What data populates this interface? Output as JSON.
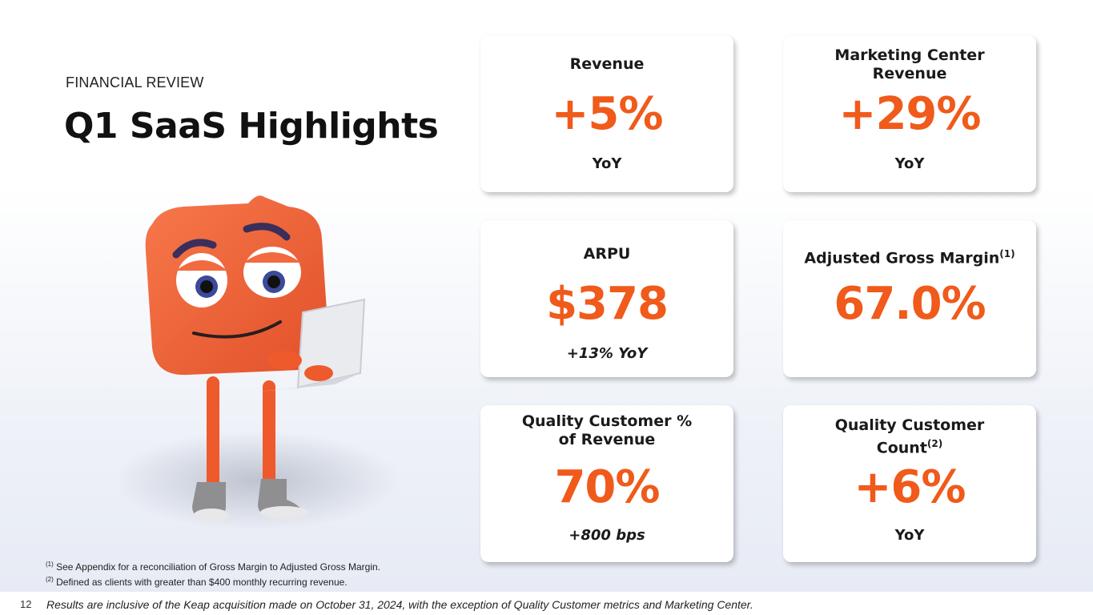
{
  "header": {
    "eyebrow": "FINANCIAL REVIEW",
    "title": "Q1 SaaS Highlights"
  },
  "cards": [
    {
      "title": "Revenue",
      "value": "+5%",
      "sub": "YoY"
    },
    {
      "title": "Marketing Center Revenue",
      "value": "+29%",
      "sub": "YoY"
    },
    {
      "title": "ARPU",
      "value": "$378",
      "sub": "+13% YoY"
    },
    {
      "title": "Adjusted Gross Margin",
      "title_sup": "(1)",
      "value": "67.0%"
    },
    {
      "title": "Quality Customer % of Revenue",
      "value": "70%",
      "sub": "+800 bps"
    },
    {
      "title": "Quality Customer Count",
      "title_sup": "(2)",
      "value": "+6%",
      "sub": "YoY"
    }
  ],
  "footnotes": [
    {
      "mark": "(1)",
      "text": "See Appendix for a reconciliation of Gross Margin to Adjusted Gross Margin."
    },
    {
      "mark": "(2)",
      "text": "Defined as clients with greater than $400 monthly recurring revenue."
    }
  ],
  "footer": {
    "page_number": "12",
    "note": "Results are inclusive of the Keap acquisition made on October 31, 2024, with the exception of Quality Customer metrics and Marketing Center."
  },
  "colors": {
    "accent": "#f05a1a",
    "mascot_body": "#f26a3f"
  },
  "icons": {
    "mascot": "orange-cube-mascot-with-laptop"
  }
}
